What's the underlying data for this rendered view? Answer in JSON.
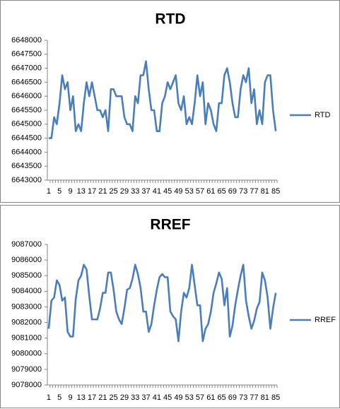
{
  "chart_data": [
    {
      "type": "line",
      "title": "RTD",
      "categories": [
        1,
        null,
        null,
        null,
        5,
        null,
        null,
        null,
        9,
        null,
        null,
        null,
        13,
        null,
        null,
        null,
        17,
        null,
        null,
        null,
        21,
        null,
        null,
        null,
        25,
        null,
        null,
        null,
        29,
        null,
        null,
        null,
        33,
        null,
        null,
        null,
        37,
        null,
        null,
        null,
        41,
        null,
        null,
        null,
        45,
        null,
        null,
        null,
        49,
        null,
        null,
        null,
        53,
        null,
        null,
        null,
        57,
        null,
        null,
        null,
        61,
        null,
        null,
        null,
        65,
        null,
        null,
        null,
        69,
        null,
        null,
        null,
        73,
        null,
        null,
        null,
        77,
        null,
        null,
        null,
        81,
        null,
        null,
        null,
        85
      ],
      "series": [
        {
          "name": "RTD",
          "color": "#4a7ebb",
          "values": [
            6644500,
            6644500,
            6645250,
            6645000,
            6645750,
            6646750,
            6646250,
            6646500,
            6645500,
            6646000,
            6644750,
            6645000,
            6644750,
            6645750,
            6646500,
            6646000,
            6646500,
            6646000,
            6645500,
            6645500,
            6645250,
            6645500,
            6644750,
            6646250,
            6646250,
            6646000,
            6646000,
            6646000,
            6645250,
            6645000,
            6645000,
            6644750,
            6646000,
            6645750,
            6646750,
            6646750,
            6647250,
            6646250,
            6645500,
            6645500,
            6644750,
            6644750,
            6645750,
            6646000,
            6646500,
            6646250,
            6646500,
            6646750,
            6645750,
            6645500,
            6646000,
            6645000,
            6645250,
            6645000,
            6645750,
            6646750,
            6646000,
            6646500,
            6645000,
            6645750,
            6645500,
            6645000,
            6644750,
            6645750,
            6645750,
            6646750,
            6647000,
            6646500,
            6645750,
            6645250,
            6645250,
            6646250,
            6646750,
            6646500,
            6647000,
            6645750,
            6646250,
            6645000,
            6645500,
            6645000,
            6646500,
            6646750,
            6646750,
            6645500,
            6644750
          ]
        }
      ],
      "ylim": [
        6643000,
        6648000
      ],
      "yticks": [
        6643000,
        6643500,
        6644000,
        6644500,
        6645000,
        6645500,
        6646000,
        6646500,
        6647000,
        6647500,
        6648000
      ],
      "grid": false,
      "legend": "right"
    },
    {
      "type": "line",
      "title": "RREF",
      "categories": [
        1,
        null,
        null,
        null,
        5,
        null,
        null,
        null,
        9,
        null,
        null,
        null,
        13,
        null,
        null,
        null,
        17,
        null,
        null,
        null,
        21,
        null,
        null,
        null,
        25,
        null,
        null,
        null,
        29,
        null,
        null,
        null,
        33,
        null,
        null,
        null,
        37,
        null,
        null,
        null,
        41,
        null,
        null,
        null,
        45,
        null,
        null,
        null,
        49,
        null,
        null,
        null,
        53,
        null,
        null,
        null,
        57,
        null,
        null,
        null,
        61,
        null,
        null,
        null,
        65,
        null,
        null,
        null,
        69,
        null,
        null,
        null,
        73,
        null,
        null,
        null,
        77,
        null,
        null,
        null,
        81,
        null,
        null,
        null,
        85
      ],
      "series": [
        {
          "name": "RREF",
          "color": "#4a7ebb",
          "values": [
            9081600,
            9083400,
            9083600,
            9084700,
            9084400,
            9083400,
            9083600,
            9081400,
            9081100,
            9081100,
            9083500,
            9084700,
            9085000,
            9085700,
            9085400,
            9083700,
            9082200,
            9082200,
            9082200,
            9082900,
            9083900,
            9083900,
            9085200,
            9085200,
            9084100,
            9082700,
            9082200,
            9081900,
            9082900,
            9084100,
            9084200,
            9084800,
            9085700,
            9085100,
            9084200,
            9082700,
            9082700,
            9081400,
            9081900,
            9083100,
            9084100,
            9084900,
            9085100,
            9084900,
            9084900,
            9082700,
            9082400,
            9082200,
            9080800,
            9082700,
            9083900,
            9083600,
            9084200,
            9085700,
            9084400,
            9083100,
            9083100,
            9080800,
            9081600,
            9081900,
            9082700,
            9083900,
            9084500,
            9085200,
            9084800,
            9083100,
            9084200,
            9081100,
            9081800,
            9083100,
            9084100,
            9085000,
            9085700,
            9083400,
            9082400,
            9081600,
            9082100,
            9082900,
            9083300,
            9085200,
            9084700,
            9083600,
            9081600,
            9082900,
            9083900
          ]
        }
      ],
      "ylim": [
        9078000,
        9087000
      ],
      "yticks": [
        9078000,
        9079000,
        9080000,
        9081000,
        9082000,
        9083000,
        9084000,
        9085000,
        9086000,
        9087000
      ],
      "grid": false,
      "legend": "right"
    }
  ]
}
